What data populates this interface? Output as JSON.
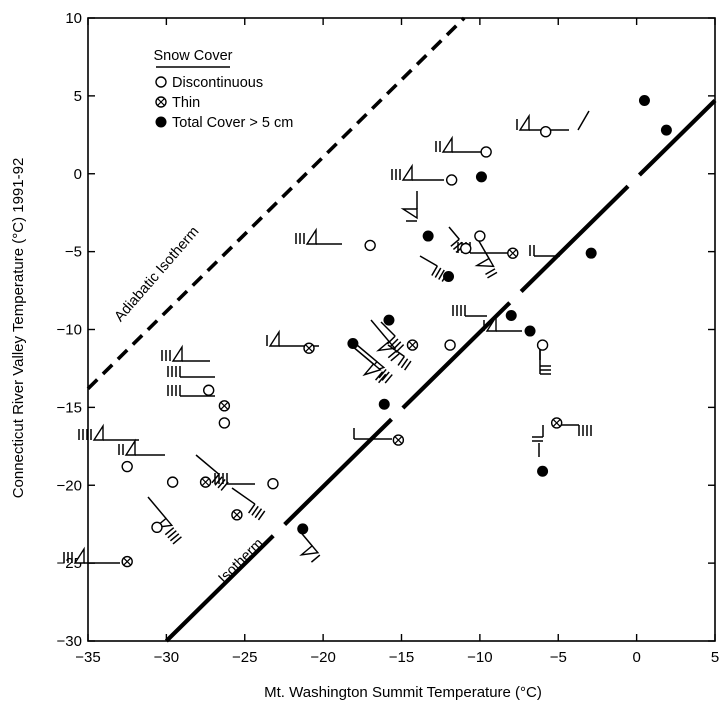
{
  "chart_data": {
    "type": "scatter",
    "xlabel": "Mt. Washington Summit Temperature (°C)",
    "ylabel": "Connecticut River Valley Temperature (°C) 1991-92",
    "xlim": [
      -35,
      5
    ],
    "ylim": [
      -30,
      10
    ],
    "x_ticks": [
      -35,
      -30,
      -25,
      -20,
      -15,
      -10,
      -5,
      0,
      5
    ],
    "y_ticks": [
      -30,
      -25,
      -20,
      -15,
      -10,
      -5,
      0,
      5,
      10
    ],
    "x_tick_labels": [
      "−35",
      "−30",
      "−25",
      "−20",
      "−15",
      "−10",
      "−5",
      "0",
      "5"
    ],
    "y_tick_labels": [
      "−30",
      "−25",
      "−20",
      "−15",
      "−10",
      "−5",
      "0",
      "5",
      "10"
    ],
    "grid": false,
    "legend": {
      "title": "Snow Cover",
      "placement": "top-left",
      "entries": [
        {
          "label": "Discontinuous",
          "marker": "open-circle"
        },
        {
          "label": "Thin",
          "marker": "crossed-circle"
        },
        {
          "label": "Total Cover > 5 cm",
          "marker": "filled-circle"
        }
      ]
    },
    "lines": [
      {
        "label": "Adiabatic Isotherm",
        "style": "dashed",
        "x": [
          -35,
          -11
        ],
        "y": [
          -13.8,
          10
        ]
      },
      {
        "label": "Isotherm",
        "style": "long-dash",
        "x": [
          -30,
          5
        ],
        "y": [
          -30,
          4.7
        ]
      }
    ],
    "series": [
      {
        "name": "Discontinuous",
        "marker": "open-circle",
        "points": [
          {
            "x": -5.8,
            "y": 2.7
          },
          {
            "x": -9.6,
            "y": 1.4
          },
          {
            "x": -11.8,
            "y": -0.4
          },
          {
            "x": -10,
            "y": -4
          },
          {
            "x": -17,
            "y": -4.6
          },
          {
            "x": -10.9,
            "y": -4.8
          },
          {
            "x": -11.9,
            "y": -11
          },
          {
            "x": -6,
            "y": -11
          },
          {
            "x": -27.3,
            "y": -13.9
          },
          {
            "x": -26.3,
            "y": -16
          },
          {
            "x": -32.5,
            "y": -18.8
          },
          {
            "x": -29.6,
            "y": -19.8
          },
          {
            "x": -23.2,
            "y": -19.9
          },
          {
            "x": -30.6,
            "y": -22.7
          }
        ]
      },
      {
        "name": "Thin",
        "marker": "crossed-circle",
        "points": [
          {
            "x": -14.3,
            "y": -11
          },
          {
            "x": -7.9,
            "y": -5.1
          },
          {
            "x": -20.9,
            "y": -11.2
          },
          {
            "x": -26.3,
            "y": -14.9
          },
          {
            "x": -15.2,
            "y": -17.1
          },
          {
            "x": -27.5,
            "y": -19.8
          },
          {
            "x": -25.5,
            "y": -21.9
          },
          {
            "x": -5.1,
            "y": -16
          },
          {
            "x": -32.5,
            "y": -24.9
          }
        ]
      },
      {
        "name": "Total Cover > 5 cm",
        "marker": "filled-circle",
        "points": [
          {
            "x": 0.5,
            "y": 4.7
          },
          {
            "x": 1.9,
            "y": 2.8
          },
          {
            "x": -9.9,
            "y": -0.2
          },
          {
            "x": -13.3,
            "y": -4
          },
          {
            "x": -12,
            "y": -6.6
          },
          {
            "x": -2.9,
            "y": -5.1
          },
          {
            "x": -15.8,
            "y": -9.4
          },
          {
            "x": -18.1,
            "y": -10.9
          },
          {
            "x": -8,
            "y": -9.1
          },
          {
            "x": -6.8,
            "y": -10.1
          },
          {
            "x": -16.1,
            "y": -14.8
          },
          {
            "x": -6,
            "y": -19.1
          },
          {
            "x": -21.3,
            "y": -22.8
          }
        ]
      }
    ]
  }
}
